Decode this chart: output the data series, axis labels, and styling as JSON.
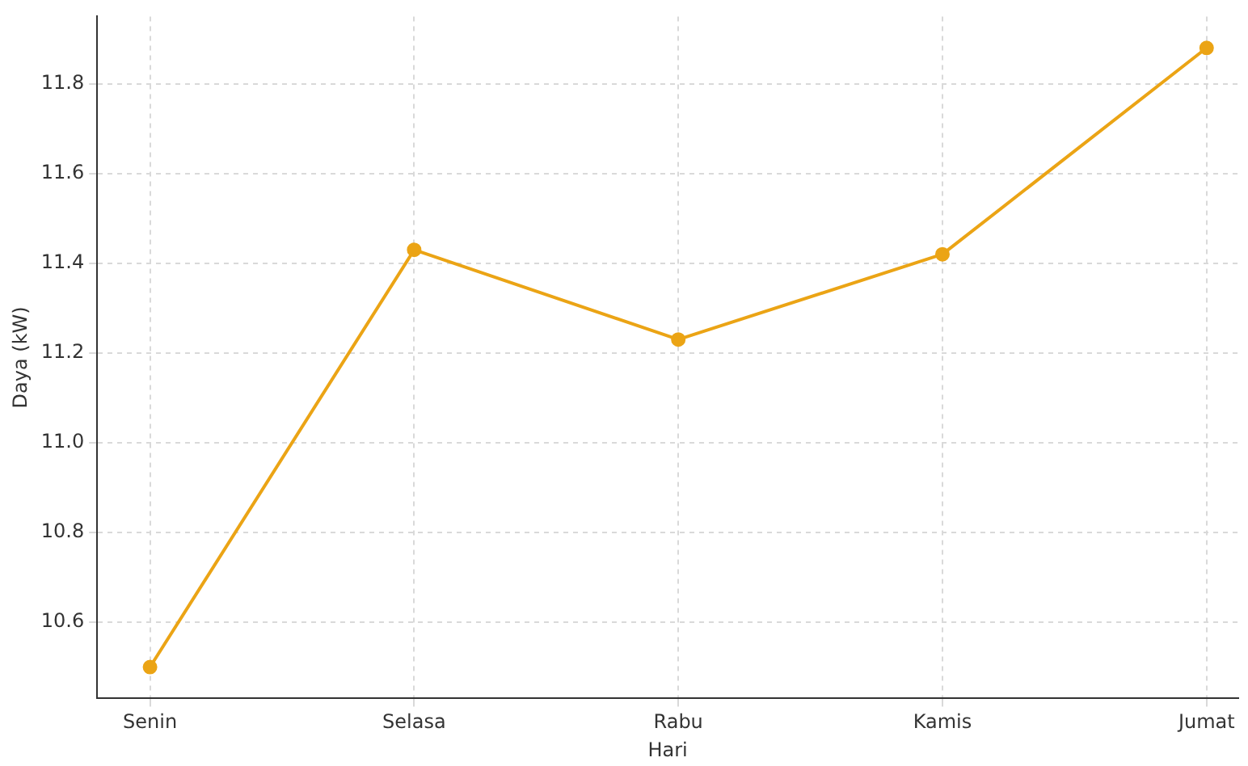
{
  "chart_data": {
    "type": "line",
    "xlabel": "Hari",
    "ylabel": "Daya (kW)",
    "categories": [
      "Senin",
      "Selasa",
      "Rabu",
      "Kamis",
      "Jumat"
    ],
    "series": [
      {
        "color": "#eba415",
        "values": [
          10.5,
          11.43,
          11.23,
          11.42,
          11.88
        ]
      }
    ],
    "ylim": [
      10.43,
      11.95
    ],
    "yticks": [
      10.6,
      10.8,
      {
        "value": 11,
        "label": "11.0"
      },
      11.2,
      11.4,
      11.6,
      11.8
    ],
    "grid": true,
    "marker": "circle",
    "line_style": "solid"
  }
}
